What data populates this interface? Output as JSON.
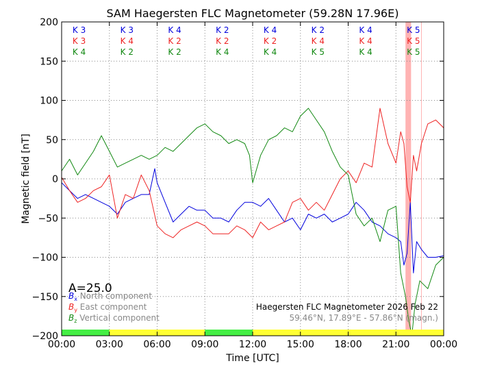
{
  "chart_data": {
    "type": "line",
    "title": "SAM Haegersten FLC Magnetometer (59.28N 17.96E)",
    "xlabel": "Time [UTC]",
    "ylabel": "Magnetic field [nT]",
    "xlim": [
      0,
      24
    ],
    "ylim": [
      -200,
      200
    ],
    "x_ticks": [
      "00:00",
      "03:00",
      "06:00",
      "09:00",
      "12:00",
      "15:00",
      "18:00",
      "21:00",
      "00:00"
    ],
    "y_ticks": [
      "200",
      "150",
      "100",
      "50",
      "0",
      "−50",
      "−100",
      "−150",
      "−200"
    ],
    "grid": true,
    "scale_text": "A=25.0",
    "legend_position": "bottom-left",
    "legend": [
      {
        "sym": "B",
        "sub": "x",
        "label": "North component",
        "color": "#0000dd"
      },
      {
        "sym": "B",
        "sub": "y",
        "label": "East component",
        "color": "#ee2222"
      },
      {
        "sym": "B",
        "sub": "z",
        "label": "Vertical component",
        "color": "#118811"
      }
    ],
    "info_line1": "Haegersten FLC Magnetometer 2026 Feb 22",
    "info_line2": "59.46°N, 17.89°E - 57.86°N (magn.)",
    "k_indices": {
      "blue": [
        "K 3",
        "K 3",
        "K 4",
        "K 2",
        "K 4",
        "K 2",
        "K 4",
        "K 5"
      ],
      "red": [
        "K 3",
        "K 4",
        "K 2",
        "K 2",
        "K 2",
        "K 4",
        "K 4",
        "K 5"
      ],
      "green": [
        "K 4",
        "K 2",
        "K 2",
        "K 4",
        "K 4",
        "K 5",
        "K 4",
        "K 5"
      ]
    },
    "activity_bar": [
      "green",
      "yellow",
      "yellow",
      "green",
      "yellow",
      "yellow",
      "yellow",
      "yellow"
    ],
    "highlight_spans": [
      [
        21.6,
        21.95
      ],
      [
        22.58,
        22.62
      ]
    ],
    "series": [
      {
        "name": "North component",
        "color": "#0000dd",
        "x": [
          0,
          0.5,
          1,
          1.5,
          2,
          2.5,
          3,
          3.5,
          4,
          4.5,
          5,
          5.5,
          5.85,
          6,
          6.5,
          7,
          7.5,
          8,
          8.5,
          9,
          9.5,
          10,
          10.5,
          11,
          11.5,
          12,
          12.5,
          13,
          13.5,
          14,
          14.5,
          15,
          15.5,
          16,
          16.5,
          17,
          17.5,
          18,
          18.5,
          19,
          19.5,
          20,
          20.5,
          21,
          21.3,
          21.5,
          21.7,
          21.9,
          22.1,
          22.3,
          22.6,
          23,
          23.5,
          24
        ],
        "y": [
          -5,
          -15,
          -25,
          -20,
          -25,
          -30,
          -35,
          -45,
          -30,
          -25,
          -20,
          -20,
          13,
          -5,
          -30,
          -55,
          -45,
          -35,
          -40,
          -40,
          -50,
          -50,
          -55,
          -40,
          -30,
          -30,
          -35,
          -25,
          -40,
          -55,
          -50,
          -65,
          -45,
          -50,
          -45,
          -55,
          -50,
          -45,
          -30,
          -40,
          -55,
          -60,
          -70,
          -75,
          -80,
          -110,
          -95,
          -30,
          -120,
          -80,
          -90,
          -100,
          -100,
          -98
        ]
      },
      {
        "name": "East component",
        "color": "#ee2222",
        "x": [
          0,
          0.5,
          1,
          1.5,
          2,
          2.5,
          3,
          3.5,
          4,
          4.5,
          5,
          5.5,
          6,
          6.5,
          7,
          7.5,
          8,
          8.5,
          9,
          9.5,
          10,
          10.5,
          11,
          11.5,
          12,
          12.5,
          13,
          13.5,
          14,
          14.5,
          15,
          15.5,
          16,
          16.5,
          17,
          17.5,
          18,
          18.5,
          19,
          19.5,
          20,
          20.5,
          21,
          21.3,
          21.5,
          21.7,
          21.9,
          22.1,
          22.3,
          22.6,
          23,
          23.5,
          24
        ],
        "y": [
          2,
          -15,
          -30,
          -25,
          -15,
          -10,
          5,
          -50,
          -20,
          -25,
          5,
          -15,
          -60,
          -70,
          -75,
          -65,
          -60,
          -55,
          -60,
          -70,
          -70,
          -70,
          -60,
          -65,
          -75,
          -55,
          -65,
          -60,
          -55,
          -30,
          -25,
          -40,
          -30,
          -40,
          -20,
          0,
          10,
          -5,
          20,
          15,
          90,
          45,
          20,
          60,
          45,
          -10,
          -30,
          30,
          10,
          45,
          70,
          75,
          65
        ]
      },
      {
        "name": "Vertical component",
        "color": "#118811",
        "x": [
          0,
          0.5,
          1,
          1.5,
          2,
          2.5,
          3,
          3.5,
          4,
          4.5,
          5,
          5.5,
          6,
          6.5,
          7,
          7.5,
          8,
          8.5,
          9,
          9.5,
          10,
          10.5,
          11,
          11.5,
          11.8,
          12,
          12.5,
          13,
          13.5,
          14,
          14.5,
          15,
          15.5,
          16,
          16.5,
          17,
          17.5,
          18,
          18.5,
          19,
          19.5,
          20,
          20.5,
          21,
          21.3,
          21.6,
          21.8,
          22.0,
          22.2,
          22.5,
          23,
          23.5,
          24
        ],
        "y": [
          10,
          25,
          5,
          20,
          35,
          55,
          35,
          15,
          20,
          25,
          30,
          25,
          30,
          40,
          35,
          45,
          55,
          65,
          70,
          60,
          55,
          45,
          50,
          45,
          30,
          -5,
          30,
          50,
          55,
          65,
          60,
          80,
          90,
          75,
          60,
          35,
          15,
          5,
          -45,
          -60,
          -50,
          -80,
          -40,
          -35,
          -120,
          -150,
          -180,
          -200,
          -160,
          -130,
          -140,
          -110,
          -100
        ]
      }
    ]
  }
}
